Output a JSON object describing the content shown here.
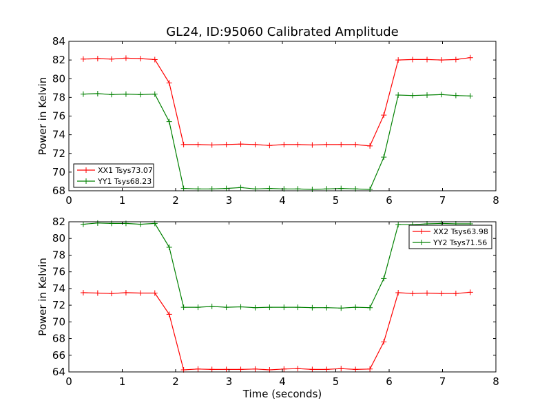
{
  "figure": {
    "title": "GL24, ID:95060 Calibrated Amplitude"
  },
  "chart_data": [
    {
      "type": "line",
      "title": "GL24, ID:95060 Calibrated Amplitude",
      "xlabel": "",
      "ylabel": "Power in Kelvin",
      "xlim": [
        0,
        8
      ],
      "ylim": [
        68,
        84
      ],
      "xticks": [
        0,
        1,
        2,
        3,
        4,
        5,
        6,
        7,
        8
      ],
      "yticks": [
        68,
        70,
        72,
        74,
        76,
        78,
        80,
        82,
        84
      ],
      "grid": false,
      "legend_position": "lower-left",
      "x": [
        0.27,
        0.54,
        0.8,
        1.07,
        1.34,
        1.61,
        1.88,
        2.15,
        2.42,
        2.68,
        2.95,
        3.22,
        3.49,
        3.76,
        4.03,
        4.29,
        4.56,
        4.83,
        5.1,
        5.37,
        5.64,
        5.9,
        6.17,
        6.44,
        6.71,
        6.98,
        7.25,
        7.52
      ],
      "series": [
        {
          "name": "XX1 Tsys73.07",
          "color": "#ff0000",
          "values": [
            82.1,
            82.15,
            82.1,
            82.2,
            82.15,
            82.05,
            79.55,
            72.95,
            72.95,
            72.9,
            72.95,
            73.0,
            72.95,
            72.85,
            72.95,
            72.95,
            72.9,
            72.95,
            72.95,
            72.95,
            72.8,
            76.1,
            82.0,
            82.05,
            82.05,
            82.0,
            82.05,
            82.25
          ]
        },
        {
          "name": "YY1 Tsys68.23",
          "color": "#008000",
          "values": [
            78.35,
            78.4,
            78.3,
            78.35,
            78.3,
            78.35,
            75.4,
            68.25,
            68.2,
            68.2,
            68.25,
            68.35,
            68.2,
            68.25,
            68.2,
            68.2,
            68.15,
            68.2,
            68.25,
            68.2,
            68.15,
            71.6,
            78.25,
            78.2,
            78.25,
            78.3,
            78.2,
            78.15
          ]
        }
      ]
    },
    {
      "type": "line",
      "title": "",
      "xlabel": "Time (seconds)",
      "ylabel": "Power in Kelvin",
      "xlim": [
        0,
        8
      ],
      "ylim": [
        64,
        82
      ],
      "xticks": [
        0,
        1,
        2,
        3,
        4,
        5,
        6,
        7,
        8
      ],
      "yticks": [
        64,
        66,
        68,
        70,
        72,
        74,
        76,
        78,
        80,
        82
      ],
      "grid": false,
      "legend_position": "upper-right",
      "x": [
        0.27,
        0.54,
        0.8,
        1.07,
        1.34,
        1.61,
        1.88,
        2.15,
        2.42,
        2.68,
        2.95,
        3.22,
        3.49,
        3.76,
        4.03,
        4.29,
        4.56,
        4.83,
        5.1,
        5.37,
        5.64,
        5.9,
        6.17,
        6.44,
        6.71,
        6.98,
        7.25,
        7.52
      ],
      "series": [
        {
          "name": "XX2 Tsys63.98",
          "color": "#ff0000",
          "values": [
            73.5,
            73.45,
            73.4,
            73.5,
            73.45,
            73.45,
            70.9,
            64.25,
            64.35,
            64.3,
            64.3,
            64.3,
            64.35,
            64.25,
            64.35,
            64.4,
            64.3,
            64.3,
            64.4,
            64.3,
            64.35,
            67.6,
            73.5,
            73.4,
            73.45,
            73.4,
            73.4,
            73.55
          ]
        },
        {
          "name": "YY2 Tsys71.56",
          "color": "#008000",
          "values": [
            81.7,
            81.85,
            81.8,
            81.8,
            81.7,
            81.8,
            78.95,
            71.75,
            71.75,
            71.85,
            71.75,
            71.8,
            71.7,
            71.75,
            71.75,
            71.75,
            71.7,
            71.7,
            71.65,
            71.75,
            71.7,
            75.2,
            81.65,
            81.65,
            81.75,
            81.8,
            81.75,
            81.75
          ]
        }
      ]
    }
  ]
}
